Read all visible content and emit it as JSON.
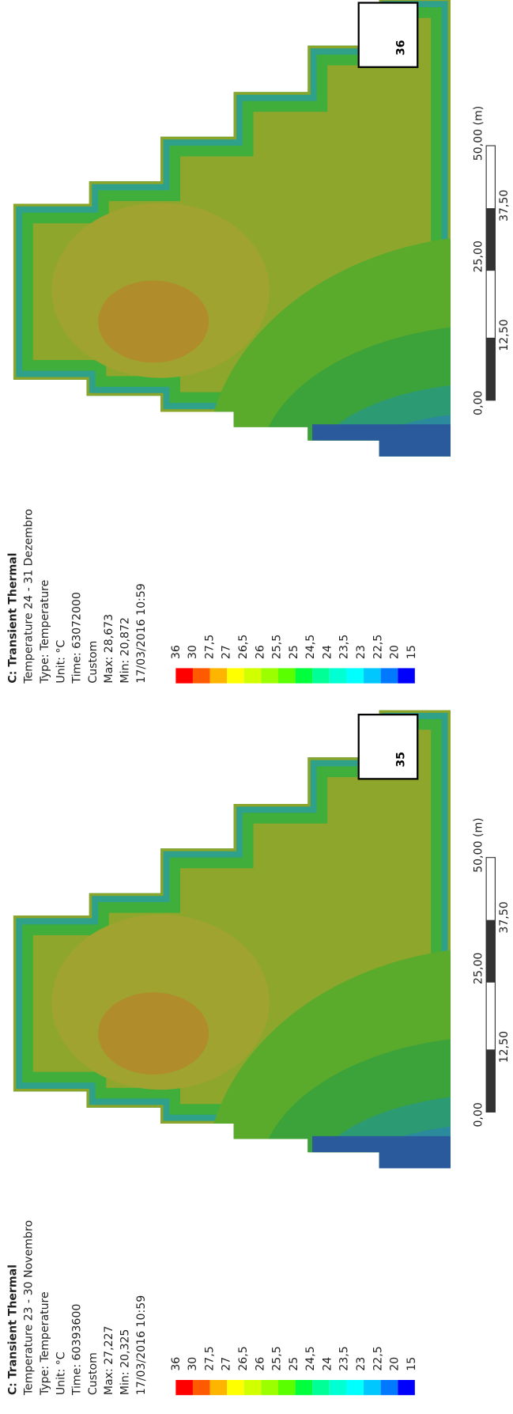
{
  "panels": [
    {
      "number": "36",
      "title": "C: Transient Thermal",
      "lines": [
        "Temperature 24 - 31 Dezembro",
        "Type: Temperature",
        "Unit: °C",
        "Time: 63072000",
        "Custom",
        "Max: 28,673",
        "Min: 20,872",
        "17/03/2016 10:59"
      ],
      "legend": [
        "36",
        "30",
        "27,5",
        "27",
        "26,5",
        "26",
        "25,5",
        "25",
        "24,5",
        "24",
        "23,5",
        "23",
        "22,5",
        "20",
        "15"
      ],
      "scale": [
        "0,00",
        "12,50",
        "25,00",
        "37,50",
        "50,00 (m)"
      ]
    },
    {
      "number": "35",
      "title": "C: Transient Thermal",
      "lines": [
        "Temperature 23 - 30 Novembro",
        "Type: Temperature",
        "Unit: °C",
        "Time: 60393600",
        "Custom",
        "Max: 27,227",
        "Min: 20,325",
        "17/03/2016 10:59"
      ],
      "legend": [
        "36",
        "30",
        "27,5",
        "27",
        "26,5",
        "26",
        "25,5",
        "25",
        "24,5",
        "24",
        "23,5",
        "23",
        "22,5",
        "20",
        "15"
      ],
      "scale": [
        "0,00",
        "12,50",
        "25,00",
        "37,50",
        "50,00 (m)"
      ]
    }
  ]
}
